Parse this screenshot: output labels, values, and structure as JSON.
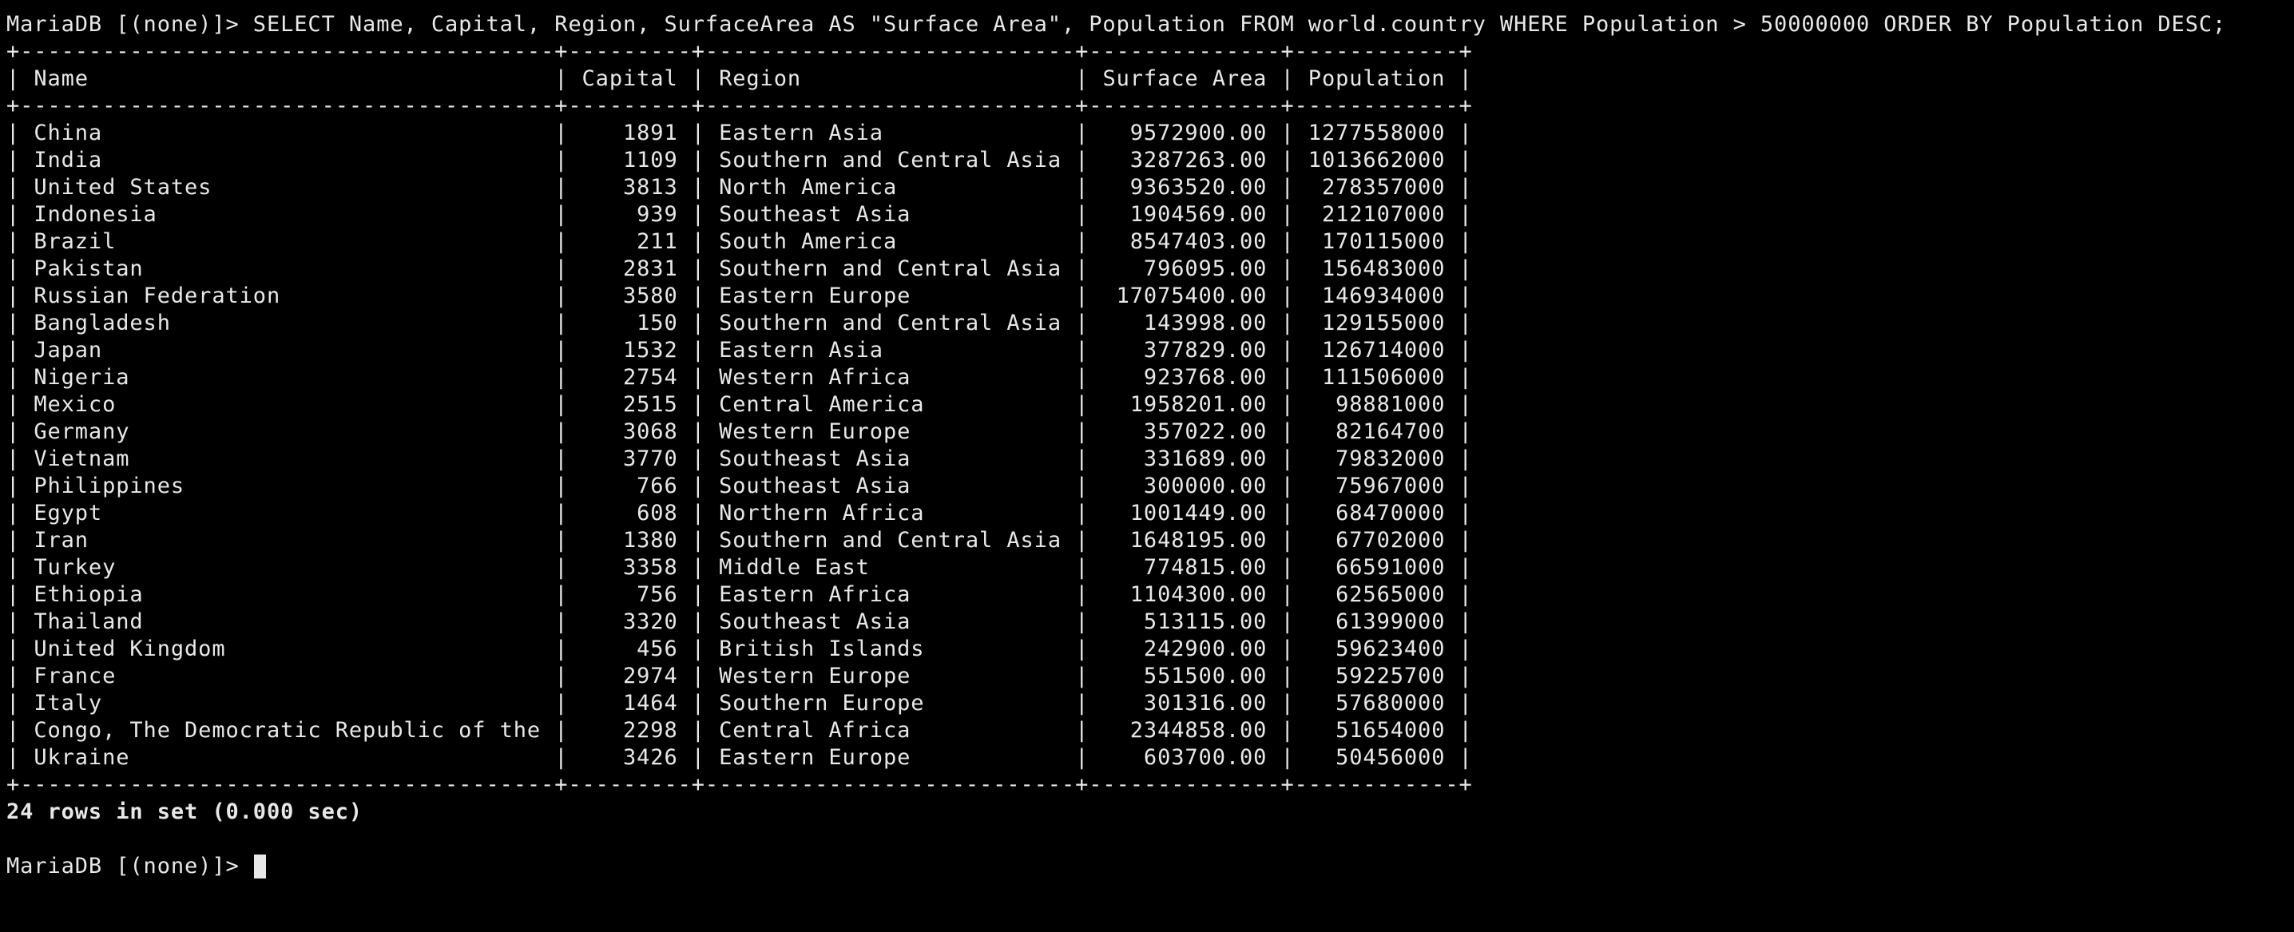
{
  "terminal": {
    "prompt": "MariaDB [(none)]> ",
    "query": "SELECT Name, Capital, Region, SurfaceArea AS \"Surface Area\", Population FROM world.country WHERE Population > 50000000 ORDER BY Population DESC;",
    "status": "24 rows in set (0.000 sec)",
    "columns": [
      "Name",
      "Capital",
      "Region",
      "Surface Area",
      "Population"
    ],
    "rows": [
      [
        "China",
        "1891",
        "Eastern Asia",
        "9572900.00",
        "1277558000"
      ],
      [
        "India",
        "1109",
        "Southern and Central Asia",
        "3287263.00",
        "1013662000"
      ],
      [
        "United States",
        "3813",
        "North America",
        "9363520.00",
        "278357000"
      ],
      [
        "Indonesia",
        "939",
        "Southeast Asia",
        "1904569.00",
        "212107000"
      ],
      [
        "Brazil",
        "211",
        "South America",
        "8547403.00",
        "170115000"
      ],
      [
        "Pakistan",
        "2831",
        "Southern and Central Asia",
        "796095.00",
        "156483000"
      ],
      [
        "Russian Federation",
        "3580",
        "Eastern Europe",
        "17075400.00",
        "146934000"
      ],
      [
        "Bangladesh",
        "150",
        "Southern and Central Asia",
        "143998.00",
        "129155000"
      ],
      [
        "Japan",
        "1532",
        "Eastern Asia",
        "377829.00",
        "126714000"
      ],
      [
        "Nigeria",
        "2754",
        "Western Africa",
        "923768.00",
        "111506000"
      ],
      [
        "Mexico",
        "2515",
        "Central America",
        "1958201.00",
        "98881000"
      ],
      [
        "Germany",
        "3068",
        "Western Europe",
        "357022.00",
        "82164700"
      ],
      [
        "Vietnam",
        "3770",
        "Southeast Asia",
        "331689.00",
        "79832000"
      ],
      [
        "Philippines",
        "766",
        "Southeast Asia",
        "300000.00",
        "75967000"
      ],
      [
        "Egypt",
        "608",
        "Northern Africa",
        "1001449.00",
        "68470000"
      ],
      [
        "Iran",
        "1380",
        "Southern and Central Asia",
        "1648195.00",
        "67702000"
      ],
      [
        "Turkey",
        "3358",
        "Middle East",
        "774815.00",
        "66591000"
      ],
      [
        "Ethiopia",
        "756",
        "Eastern Africa",
        "1104300.00",
        "62565000"
      ],
      [
        "Thailand",
        "3320",
        "Southeast Asia",
        "513115.00",
        "61399000"
      ],
      [
        "United Kingdom",
        "456",
        "British Islands",
        "242900.00",
        "59623400"
      ],
      [
        "France",
        "2974",
        "Western Europe",
        "551500.00",
        "59225700"
      ],
      [
        "Italy",
        "1464",
        "Southern Europe",
        "301316.00",
        "57680000"
      ],
      [
        "Congo, The Democratic Republic of the",
        "2298",
        "Central Africa",
        "2344858.00",
        "51654000"
      ],
      [
        "Ukraine",
        "3426",
        "Eastern Europe",
        "603700.00",
        "50456000"
      ]
    ]
  }
}
